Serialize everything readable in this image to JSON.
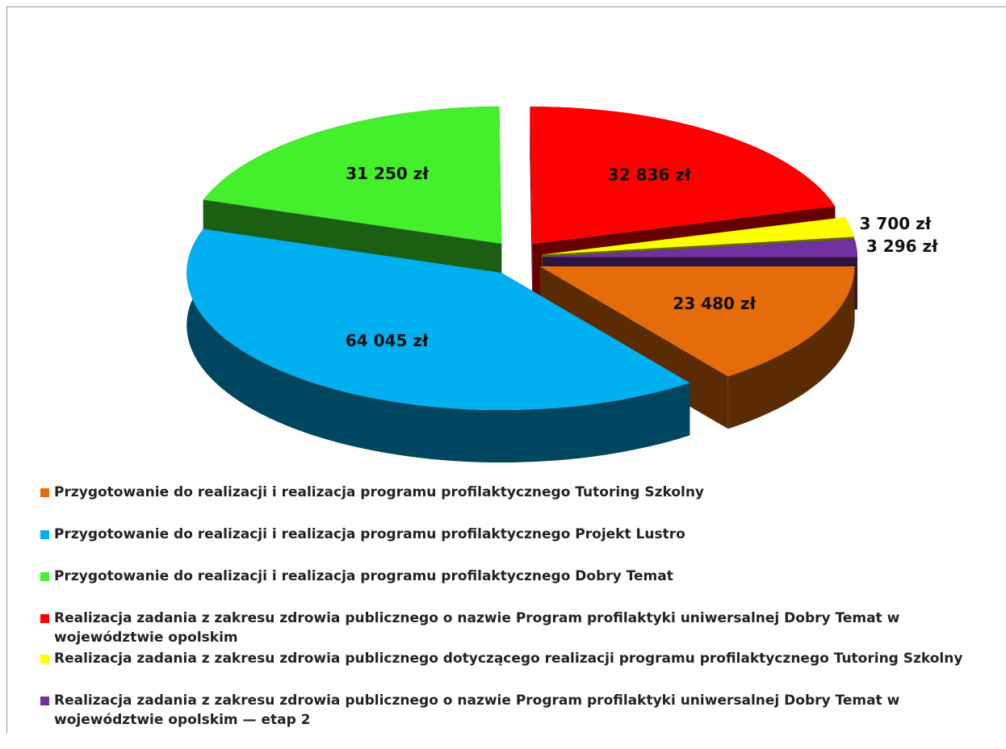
{
  "chart_data": {
    "type": "pie",
    "categories": [
      "Przygotowanie do realizacji i realizacja programu profilaktycznego Tutoring Szkolny",
      "Przygotowanie do realizacji i realizacja programu profilaktycznego Projekt Lustro",
      "Przygotowanie do realizacji i realizacja programu profilaktycznego Dobry Temat",
      "Realizacja zadania z zakresu zdrowia publicznego o nazwie Program profilaktyki uniwersalnej Dobry Temat w województwie opolskim",
      "Realizacja zadania z zakresu zdrowia publicznego dotyczącego realizacji programu profilaktycznego Tutoring Szkolny",
      "Realizacja zadania z zakresu zdrowia publicznego o nazwie Program profilaktyki uniwersalnej Dobry Temat w województwie opolskim — etap 2"
    ],
    "values": [
      23480,
      64045,
      31250,
      32836,
      3700,
      3296
    ],
    "value_labels": [
      "23 480 zł",
      "64 045 zł",
      "31 250 zł",
      "32 836 zł",
      "3 700 zł",
      "3 296 zł"
    ],
    "colors": [
      "#e46c0a",
      "#00b0f0",
      "#44f02c",
      "#ff0000",
      "#ffff00",
      "#7030a0"
    ],
    "legend": "bottom"
  }
}
